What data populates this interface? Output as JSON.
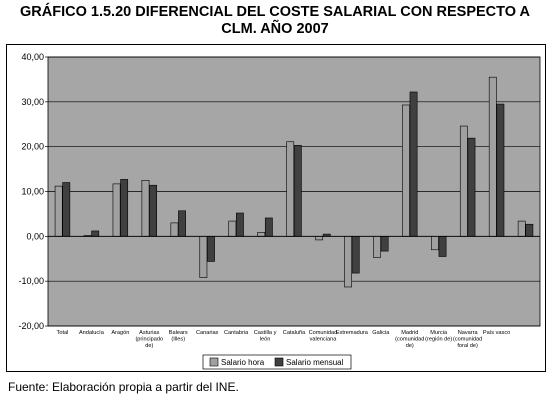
{
  "title_line1": "GRÁFICO 1.5.20 DIFERENCIAL DEL COSTE SALARIAL CON RESPECTO A",
  "title_line2": "CLM. AÑO 2007",
  "source": "Fuente: Elaboración propia a partir del INE.",
  "colors": {
    "plot_bg": "#a6a6a6",
    "series_hora": "#a0a0a0",
    "series_mensual": "#404040",
    "grid": "#000000"
  },
  "chart_data": {
    "type": "bar",
    "title": "GRÁFICO 1.5.20 DIFERENCIAL DEL COSTE SALARIAL CON RESPECTO A CLM. AÑO 2007",
    "ylim": [
      -20,
      40
    ],
    "yticks": [
      "40,00",
      "30,00",
      "20,00",
      "10,00",
      "0,00",
      "-10,00",
      "-20,00"
    ],
    "ytick_values": [
      40,
      30,
      20,
      10,
      0,
      -10,
      -20
    ],
    "grid": true,
    "legend_position": "bottom",
    "categories": [
      [
        "Total"
      ],
      [
        "Andalucía"
      ],
      [
        "Aragón"
      ],
      [
        "Asturias",
        "(principado",
        "de)"
      ],
      [
        "Balears",
        "(Illes)"
      ],
      [
        "Canarias"
      ],
      [
        "Cantabria"
      ],
      [
        "Castilla y",
        "león"
      ],
      [
        "Cataluña"
      ],
      [
        "Comunidad",
        "valenciana"
      ],
      [
        "Extremadura"
      ],
      [
        "Galicia"
      ],
      [
        "Madrid",
        "(comunidad",
        "de)"
      ],
      [
        "Murcia",
        "(región de)"
      ],
      [
        "Navarra",
        "(comunidad",
        "foral de)"
      ],
      [
        "País vasco"
      ],
      [
        ""
      ]
    ],
    "series": [
      {
        "name": "Salario hora",
        "values": [
          11.2,
          0.2,
          11.7,
          12.5,
          3.0,
          -9.2,
          3.4,
          0.9,
          21.1,
          -0.8,
          -11.3,
          -4.7,
          29.3,
          -3.0,
          24.6,
          35.5,
          3.4
        ]
      },
      {
        "name": "Salario mensual",
        "values": [
          12.0,
          1.2,
          12.7,
          11.4,
          5.7,
          -5.6,
          5.2,
          4.1,
          20.3,
          0.5,
          -8.2,
          -3.3,
          32.2,
          -4.5,
          21.9,
          29.5,
          2.7
        ]
      }
    ]
  }
}
